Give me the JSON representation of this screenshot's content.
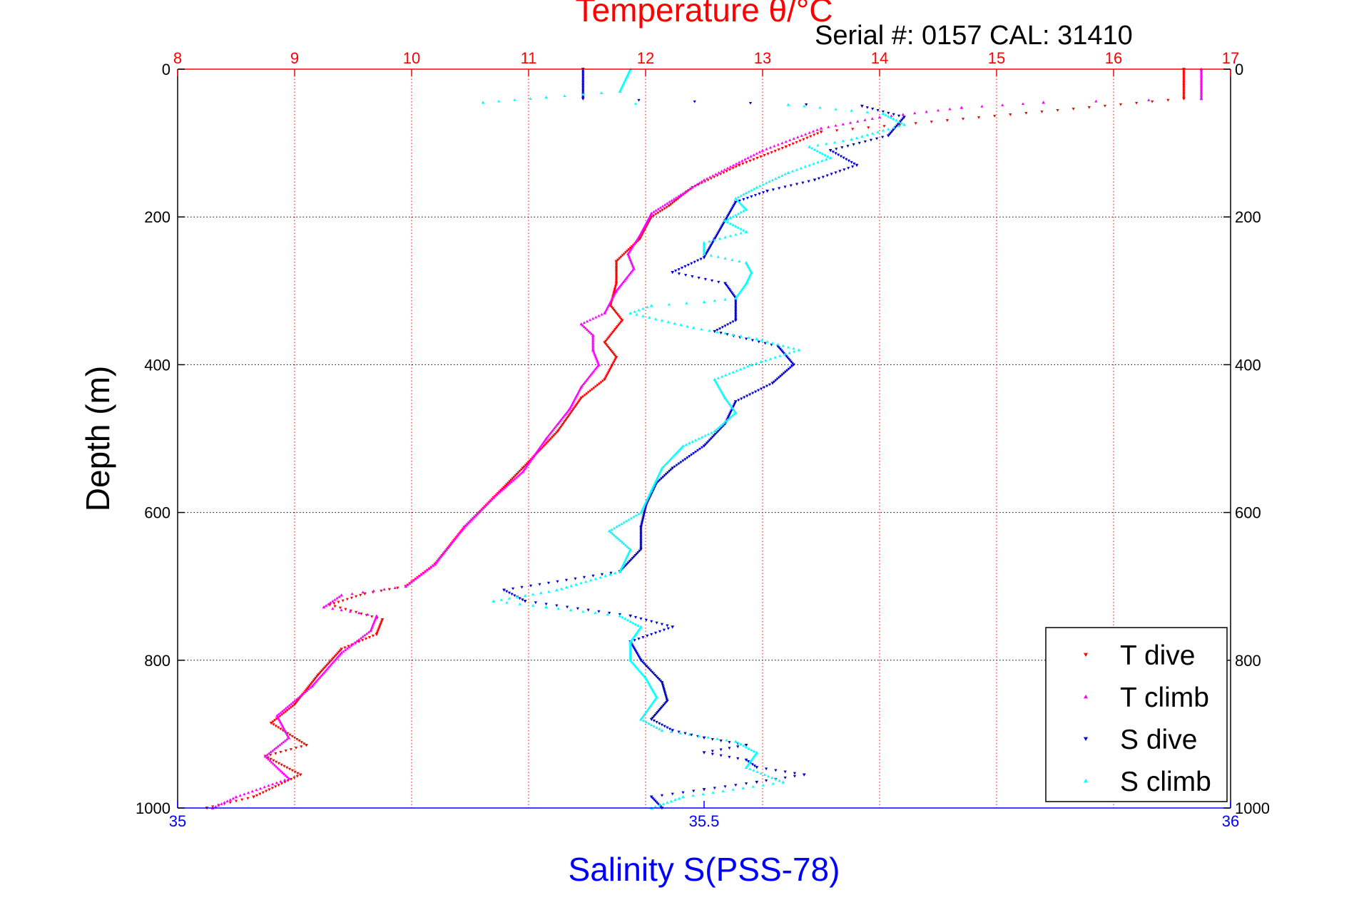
{
  "chart_data": {
    "type": "scatter",
    "title": "Temperature θ/°C",
    "subtitle": "Serial #: 0157  CAL: 31410",
    "ylabel": "Depth (m)",
    "xlabel_bottom": "Salinity S(PSS-78)",
    "depth_axis": {
      "range": [
        0,
        1000
      ],
      "reversed": true,
      "ticks": [
        0,
        200,
        400,
        600,
        800,
        1000
      ],
      "tick_labels": [
        "0",
        "200",
        "400",
        "600",
        "800",
        "1000"
      ]
    },
    "temperature_axis": {
      "position": "top",
      "range": [
        8,
        17
      ],
      "ticks": [
        8,
        9,
        10,
        11,
        12,
        13,
        14,
        15,
        16,
        17
      ],
      "tick_labels": [
        "8",
        "9",
        "10",
        "11",
        "12",
        "13",
        "14",
        "15",
        "16",
        "17"
      ]
    },
    "salinity_axis": {
      "position": "bottom",
      "range": [
        35,
        36
      ],
      "ticks": [
        35,
        35.5,
        36
      ],
      "tick_labels": [
        "35",
        "35.5",
        "36"
      ]
    },
    "grid": true,
    "legend_position": "bottom-right",
    "colors": {
      "temperature_axis": "#ff0000",
      "salinity_axis": "#0000ff",
      "grid_vertical": "#ff0000",
      "grid_horizontal": "#000000",
      "t_dive": "#ff0000",
      "t_climb": "#ff00ff",
      "s_dive": "#0000cc",
      "s_climb": "#00ffff"
    },
    "series": [
      {
        "name": "T dive",
        "variable": "temperature",
        "axis": "top",
        "marker": "triangle-down",
        "color": "#ff0000",
        "points": [
          [
            16.6,
            0
          ],
          [
            16.6,
            40
          ],
          [
            13.5,
            85
          ],
          [
            13.2,
            105
          ],
          [
            12.8,
            130
          ],
          [
            12.4,
            160
          ],
          [
            12.2,
            185
          ],
          [
            12.05,
            200
          ],
          [
            11.95,
            230
          ],
          [
            11.75,
            260
          ],
          [
            11.75,
            290
          ],
          [
            11.7,
            320
          ],
          [
            11.8,
            340
          ],
          [
            11.65,
            370
          ],
          [
            11.75,
            390
          ],
          [
            11.65,
            420
          ],
          [
            11.45,
            445
          ],
          [
            11.25,
            490
          ],
          [
            10.95,
            540
          ],
          [
            10.7,
            580
          ],
          [
            10.45,
            620
          ],
          [
            10.2,
            670
          ],
          [
            9.95,
            700
          ],
          [
            9.6,
            710
          ],
          [
            9.3,
            725
          ],
          [
            9.75,
            745
          ],
          [
            9.7,
            765
          ],
          [
            9.4,
            785
          ],
          [
            9.2,
            820
          ],
          [
            9.0,
            860
          ],
          [
            8.8,
            885
          ],
          [
            9.1,
            915
          ],
          [
            8.75,
            930
          ],
          [
            9.05,
            955
          ],
          [
            8.65,
            985
          ],
          [
            8.25,
            1000
          ]
        ]
      },
      {
        "name": "T climb",
        "variable": "temperature",
        "axis": "top",
        "marker": "triangle-up",
        "color": "#ff00ff",
        "points": [
          [
            16.75,
            0
          ],
          [
            16.75,
            40
          ],
          [
            15.4,
            45
          ],
          [
            14.7,
            52
          ],
          [
            14.0,
            65
          ],
          [
            13.5,
            80
          ],
          [
            13.0,
            110
          ],
          [
            12.5,
            150
          ],
          [
            12.3,
            170
          ],
          [
            12.05,
            195
          ],
          [
            11.95,
            225
          ],
          [
            11.85,
            250
          ],
          [
            11.9,
            270
          ],
          [
            11.75,
            300
          ],
          [
            11.65,
            330
          ],
          [
            11.45,
            345
          ],
          [
            11.55,
            360
          ],
          [
            11.55,
            380
          ],
          [
            11.6,
            400
          ],
          [
            11.45,
            430
          ],
          [
            11.35,
            460
          ],
          [
            11.15,
            500
          ],
          [
            10.95,
            545
          ],
          [
            10.7,
            580
          ],
          [
            10.45,
            620
          ],
          [
            10.2,
            670
          ],
          [
            9.95,
            700
          ],
          [
            9.4,
            712
          ],
          [
            9.25,
            728
          ],
          [
            9.7,
            740
          ],
          [
            9.65,
            760
          ],
          [
            9.4,
            790
          ],
          [
            9.15,
            835
          ],
          [
            8.85,
            875
          ],
          [
            8.95,
            905
          ],
          [
            8.75,
            930
          ],
          [
            8.95,
            960
          ],
          [
            8.5,
            985
          ],
          [
            8.3,
            1000
          ]
        ]
      },
      {
        "name": "S dive",
        "variable": "salinity",
        "axis": "bottom",
        "marker": "triangle-down",
        "color": "#0000cc",
        "points": [
          [
            35.385,
            0
          ],
          [
            35.385,
            40
          ],
          [
            35.65,
            50
          ],
          [
            35.69,
            65
          ],
          [
            35.675,
            90
          ],
          [
            35.62,
            110
          ],
          [
            35.645,
            130
          ],
          [
            35.605,
            150
          ],
          [
            35.56,
            165
          ],
          [
            35.53,
            180
          ],
          [
            35.52,
            205
          ],
          [
            35.51,
            230
          ],
          [
            35.5,
            255
          ],
          [
            35.47,
            275
          ],
          [
            35.52,
            290
          ],
          [
            35.53,
            310
          ],
          [
            35.53,
            340
          ],
          [
            35.51,
            355
          ],
          [
            35.57,
            375
          ],
          [
            35.585,
            400
          ],
          [
            35.565,
            425
          ],
          [
            35.53,
            450
          ],
          [
            35.52,
            480
          ],
          [
            35.5,
            510
          ],
          [
            35.47,
            540
          ],
          [
            35.455,
            560
          ],
          [
            35.445,
            590
          ],
          [
            35.44,
            620
          ],
          [
            35.44,
            650
          ],
          [
            35.42,
            680
          ],
          [
            35.31,
            705
          ],
          [
            35.33,
            720
          ],
          [
            35.43,
            740
          ],
          [
            35.47,
            755
          ],
          [
            35.43,
            775
          ],
          [
            35.44,
            800
          ],
          [
            35.46,
            830
          ],
          [
            35.465,
            855
          ],
          [
            35.45,
            880
          ],
          [
            35.47,
            895
          ],
          [
            35.5,
            905
          ],
          [
            35.54,
            915
          ],
          [
            35.5,
            925
          ],
          [
            35.54,
            935
          ],
          [
            35.55,
            945
          ],
          [
            35.595,
            955
          ],
          [
            35.55,
            965
          ],
          [
            35.5,
            975
          ],
          [
            35.45,
            985
          ],
          [
            35.46,
            1000
          ]
        ]
      },
      {
        "name": "S climb",
        "variable": "salinity",
        "axis": "bottom",
        "marker": "triangle-up",
        "color": "#00ffff",
        "points": [
          [
            35.43,
            0
          ],
          [
            35.42,
            30
          ],
          [
            35.35,
            38
          ],
          [
            35.29,
            45
          ],
          [
            35.58,
            48
          ],
          [
            35.67,
            60
          ],
          [
            35.69,
            75
          ],
          [
            35.64,
            95
          ],
          [
            35.6,
            105
          ],
          [
            35.62,
            120
          ],
          [
            35.58,
            140
          ],
          [
            35.55,
            160
          ],
          [
            35.53,
            175
          ],
          [
            35.54,
            190
          ],
          [
            35.52,
            205
          ],
          [
            35.54,
            220
          ],
          [
            35.5,
            235
          ],
          [
            35.5,
            250
          ],
          [
            35.54,
            262
          ],
          [
            35.545,
            275
          ],
          [
            35.54,
            290
          ],
          [
            35.53,
            310
          ],
          [
            35.5,
            315
          ],
          [
            35.45,
            320
          ],
          [
            35.43,
            330
          ],
          [
            35.49,
            350
          ],
          [
            35.55,
            365
          ],
          [
            35.59,
            380
          ],
          [
            35.545,
            400
          ],
          [
            35.51,
            420
          ],
          [
            35.52,
            445
          ],
          [
            35.53,
            465
          ],
          [
            35.51,
            490
          ],
          [
            35.48,
            510
          ],
          [
            35.46,
            540
          ],
          [
            35.45,
            570
          ],
          [
            35.44,
            600
          ],
          [
            35.41,
            625
          ],
          [
            35.43,
            650
          ],
          [
            35.42,
            680
          ],
          [
            35.36,
            705
          ],
          [
            35.3,
            720
          ],
          [
            35.35,
            728
          ],
          [
            35.42,
            740
          ],
          [
            35.44,
            755
          ],
          [
            35.43,
            775
          ],
          [
            35.43,
            800
          ],
          [
            35.445,
            825
          ],
          [
            35.455,
            850
          ],
          [
            35.44,
            880
          ],
          [
            35.46,
            895
          ],
          [
            35.53,
            910
          ],
          [
            35.55,
            925
          ],
          [
            35.54,
            945
          ],
          [
            35.575,
            965
          ],
          [
            35.48,
            985
          ],
          [
            35.45,
            1000
          ]
        ]
      }
    ]
  }
}
